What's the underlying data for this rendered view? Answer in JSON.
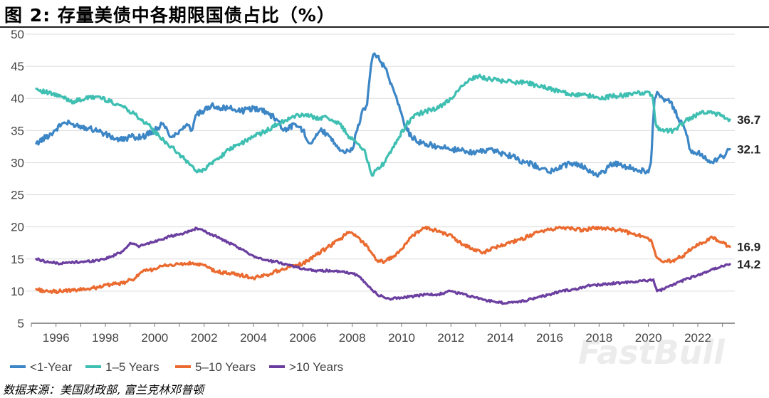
{
  "header": {
    "title": "图 2:  存量美债中各期限国债占比（%）"
  },
  "footer": {
    "source": "数据来源：美国财政部, 富兰克林邓普顿"
  },
  "watermark": "FastBull",
  "colors": {
    "lt1": "#3d86c6",
    "y1_5": "#3fbfb2",
    "y5_10": "#ea6a2f",
    "gt10": "#6b3fa0"
  },
  "chart_data": {
    "type": "line",
    "title": "存量美债中各期限国债占比（%）",
    "xlabel": "",
    "ylabel": "",
    "xlim": [
      1995,
      2023.5
    ],
    "ylim": [
      5,
      50
    ],
    "x_ticks": [
      "1996",
      "1998",
      "2000",
      "2002",
      "2004",
      "2006",
      "2008",
      "2010",
      "2012",
      "2014",
      "2016",
      "2018",
      "2020",
      "2022"
    ],
    "y_ticks": [
      "50",
      "45",
      "40",
      "35",
      "30",
      "25",
      "20",
      "15",
      "10",
      "5"
    ],
    "legend_position": "bottom-left",
    "series": [
      {
        "name": "<1-Year",
        "color": "#3d86c6",
        "end_label": "32.1",
        "points": [
          [
            1995.2,
            33
          ],
          [
            1995.8,
            34.5
          ],
          [
            1996.3,
            36.2
          ],
          [
            1996.7,
            36
          ],
          [
            1997.2,
            35.5
          ],
          [
            1997.7,
            35
          ],
          [
            1998.2,
            34
          ],
          [
            1998.6,
            33.5
          ],
          [
            1999,
            34
          ],
          [
            1999.5,
            34
          ],
          [
            2000,
            35
          ],
          [
            2000.3,
            36
          ],
          [
            2000.7,
            34
          ],
          [
            2001,
            35
          ],
          [
            2001.3,
            36
          ],
          [
            2001.5,
            35
          ],
          [
            2001.7,
            37.5
          ],
          [
            2002,
            38
          ],
          [
            2002.3,
            39
          ],
          [
            2002.7,
            38.5
          ],
          [
            2003,
            38.5
          ],
          [
            2003.5,
            38
          ],
          [
            2004,
            38.5
          ],
          [
            2004.5,
            38
          ],
          [
            2005,
            36.5
          ],
          [
            2005.2,
            35
          ],
          [
            2005.7,
            36
          ],
          [
            2006,
            35
          ],
          [
            2006.3,
            33
          ],
          [
            2006.7,
            35
          ],
          [
            2007,
            34.5
          ],
          [
            2007.3,
            33
          ],
          [
            2007.7,
            31.5
          ],
          [
            2008,
            32
          ],
          [
            2008.2,
            35
          ],
          [
            2008.4,
            38
          ],
          [
            2008.6,
            39
          ],
          [
            2008.8,
            46
          ],
          [
            2008.9,
            47
          ],
          [
            2009.1,
            46
          ],
          [
            2009.3,
            45
          ],
          [
            2009.5,
            43
          ],
          [
            2009.7,
            41
          ],
          [
            2009.9,
            39
          ],
          [
            2010.1,
            36
          ],
          [
            2010.4,
            34
          ],
          [
            2010.8,
            33
          ],
          [
            2011.5,
            32.5
          ],
          [
            2012,
            32
          ],
          [
            2012.5,
            32
          ],
          [
            2013,
            31.5
          ],
          [
            2013.5,
            32
          ],
          [
            2014,
            31.5
          ],
          [
            2014.5,
            31
          ],
          [
            2015,
            30
          ],
          [
            2015.5,
            29.5
          ],
          [
            2016,
            28.5
          ],
          [
            2016.5,
            29.5
          ],
          [
            2017,
            30
          ],
          [
            2017.5,
            29
          ],
          [
            2017.9,
            28
          ],
          [
            2018.3,
            29
          ],
          [
            2018.6,
            30
          ],
          [
            2019,
            29.5
          ],
          [
            2019.5,
            29
          ],
          [
            2020,
            28.5
          ],
          [
            2020.1,
            30
          ],
          [
            2020.25,
            40
          ],
          [
            2020.35,
            41
          ],
          [
            2020.6,
            40
          ],
          [
            2020.9,
            39.5
          ],
          [
            2021.2,
            37
          ],
          [
            2021.5,
            35
          ],
          [
            2021.7,
            32
          ],
          [
            2022,
            31.5
          ],
          [
            2022.3,
            31
          ],
          [
            2022.5,
            30
          ],
          [
            2022.8,
            30.5
          ],
          [
            2023,
            31
          ],
          [
            2023.3,
            32.1
          ]
        ]
      },
      {
        "name": "1–5 Years",
        "color": "#3fbfb2",
        "end_label": "36.7",
        "points": [
          [
            1995.2,
            41.5
          ],
          [
            1995.7,
            40.8
          ],
          [
            1996.2,
            40.3
          ],
          [
            1996.7,
            39.5
          ],
          [
            1997.2,
            40
          ],
          [
            1997.7,
            40.3
          ],
          [
            1998.2,
            39.5
          ],
          [
            1998.7,
            38.8
          ],
          [
            1999.2,
            37.5
          ],
          [
            1999.7,
            36
          ],
          [
            2000.2,
            34
          ],
          [
            2000.5,
            33
          ],
          [
            2000.8,
            32
          ],
          [
            2001.2,
            30.5
          ],
          [
            2001.5,
            29.5
          ],
          [
            2001.7,
            28.5
          ],
          [
            2002,
            29
          ],
          [
            2002.5,
            30.5
          ],
          [
            2003,
            32
          ],
          [
            2003.5,
            33
          ],
          [
            2004,
            34
          ],
          [
            2004.5,
            35
          ],
          [
            2005,
            36
          ],
          [
            2005.5,
            37
          ],
          [
            2006,
            37.5
          ],
          [
            2006.5,
            37
          ],
          [
            2007,
            37
          ],
          [
            2007.5,
            36
          ],
          [
            2007.9,
            34
          ],
          [
            2008.2,
            33
          ],
          [
            2008.5,
            32
          ],
          [
            2008.8,
            28
          ],
          [
            2009,
            29
          ],
          [
            2009.3,
            30
          ],
          [
            2009.6,
            32
          ],
          [
            2009.9,
            34
          ],
          [
            2010.2,
            36
          ],
          [
            2010.6,
            37.5
          ],
          [
            2011,
            38
          ],
          [
            2011.5,
            38.5
          ],
          [
            2012,
            40
          ],
          [
            2012.5,
            42
          ],
          [
            2013,
            43.5
          ],
          [
            2013.5,
            43
          ],
          [
            2014,
            42.8
          ],
          [
            2014.5,
            42.5
          ],
          [
            2015,
            42.5
          ],
          [
            2015.5,
            42
          ],
          [
            2016,
            41.5
          ],
          [
            2016.5,
            41
          ],
          [
            2017,
            40.5
          ],
          [
            2017.5,
            40.5
          ],
          [
            2018,
            40
          ],
          [
            2018.5,
            40.3
          ],
          [
            2019,
            40.5
          ],
          [
            2019.5,
            40.8
          ],
          [
            2020,
            41
          ],
          [
            2020.15,
            40.5
          ],
          [
            2020.3,
            36
          ],
          [
            2020.5,
            35
          ],
          [
            2021,
            35
          ],
          [
            2021.5,
            36.5
          ],
          [
            2022,
            37.5
          ],
          [
            2022.5,
            38
          ],
          [
            2023,
            37.2
          ],
          [
            2023.3,
            36.7
          ]
        ]
      },
      {
        "name": "5–10 Years",
        "color": "#ea6a2f",
        "end_label": "16.9",
        "points": [
          [
            1995.2,
            10.3
          ],
          [
            1995.7,
            9.9
          ],
          [
            1996.2,
            10
          ],
          [
            1996.7,
            10.1
          ],
          [
            1997.2,
            10.3
          ],
          [
            1997.7,
            10.6
          ],
          [
            1998.2,
            11
          ],
          [
            1998.7,
            11.2
          ],
          [
            1999.2,
            12
          ],
          [
            1999.5,
            13
          ],
          [
            2000,
            13.5
          ],
          [
            2000.5,
            14
          ],
          [
            2001,
            14.2
          ],
          [
            2001.5,
            14.3
          ],
          [
            2002,
            14
          ],
          [
            2002.5,
            13
          ],
          [
            2003,
            12.8
          ],
          [
            2003.5,
            12.5
          ],
          [
            2004,
            12
          ],
          [
            2004.5,
            12.5
          ],
          [
            2005,
            13.2
          ],
          [
            2005.5,
            13.8
          ],
          [
            2006,
            14.3
          ],
          [
            2006.5,
            15.5
          ],
          [
            2007,
            16.8
          ],
          [
            2007.5,
            18
          ],
          [
            2007.8,
            19.2
          ],
          [
            2008.2,
            18.5
          ],
          [
            2008.6,
            17
          ],
          [
            2009,
            14.8
          ],
          [
            2009.3,
            14.5
          ],
          [
            2009.7,
            15.5
          ],
          [
            2010,
            16.5
          ],
          [
            2010.4,
            18.5
          ],
          [
            2010.9,
            19.8
          ],
          [
            2011.4,
            19.5
          ],
          [
            2011.9,
            18.8
          ],
          [
            2012.4,
            17.5
          ],
          [
            2012.9,
            16.5
          ],
          [
            2013.3,
            16
          ],
          [
            2013.8,
            16.8
          ],
          [
            2014.3,
            17.5
          ],
          [
            2014.8,
            18
          ],
          [
            2015.3,
            18.8
          ],
          [
            2015.8,
            19.5
          ],
          [
            2016.3,
            19.8
          ],
          [
            2016.8,
            19.8
          ],
          [
            2017.3,
            19.5
          ],
          [
            2017.8,
            19.8
          ],
          [
            2018.3,
            19.8
          ],
          [
            2018.8,
            19.5
          ],
          [
            2019.3,
            19
          ],
          [
            2019.8,
            18.5
          ],
          [
            2020.1,
            18
          ],
          [
            2020.3,
            15.5
          ],
          [
            2020.6,
            14.5
          ],
          [
            2021,
            14.8
          ],
          [
            2021.4,
            15.5
          ],
          [
            2021.8,
            16.8
          ],
          [
            2022.2,
            17.5
          ],
          [
            2022.6,
            18.3
          ],
          [
            2023,
            17.5
          ],
          [
            2023.3,
            16.9
          ]
        ]
      },
      {
        "name": ">10 Years",
        "color": "#6b3fa0",
        "end_label": "14.2",
        "points": [
          [
            1995.2,
            15
          ],
          [
            1995.7,
            14.5
          ],
          [
            1996.2,
            14.3
          ],
          [
            1996.7,
            14.5
          ],
          [
            1997.2,
            14.6
          ],
          [
            1997.7,
            14.8
          ],
          [
            1998.2,
            15.3
          ],
          [
            1998.7,
            16.2
          ],
          [
            1999,
            17.5
          ],
          [
            1999.4,
            17
          ],
          [
            1999.8,
            17.5
          ],
          [
            2000.2,
            18
          ],
          [
            2000.6,
            18.5
          ],
          [
            2001,
            18.8
          ],
          [
            2001.4,
            19.3
          ],
          [
            2001.7,
            19.8
          ],
          [
            2002,
            19.3
          ],
          [
            2002.5,
            18.5
          ],
          [
            2003,
            17.5
          ],
          [
            2003.5,
            16.5
          ],
          [
            2004,
            15.5
          ],
          [
            2004.5,
            14.8
          ],
          [
            2005,
            14.5
          ],
          [
            2005.5,
            14
          ],
          [
            2006,
            13.5
          ],
          [
            2006.5,
            13.2
          ],
          [
            2007,
            13.2
          ],
          [
            2007.5,
            13
          ],
          [
            2008,
            12.8
          ],
          [
            2008.3,
            12.2
          ],
          [
            2008.6,
            11
          ],
          [
            2009,
            9.5
          ],
          [
            2009.3,
            9
          ],
          [
            2009.6,
            8.8
          ],
          [
            2010,
            9
          ],
          [
            2010.5,
            9.2
          ],
          [
            2011,
            9.5
          ],
          [
            2011.5,
            9.5
          ],
          [
            2012,
            10
          ],
          [
            2012.5,
            9.5
          ],
          [
            2013,
            9
          ],
          [
            2013.5,
            8.5
          ],
          [
            2014,
            8.2
          ],
          [
            2014.5,
            8.2
          ],
          [
            2015,
            8.5
          ],
          [
            2015.5,
            9
          ],
          [
            2016,
            9.5
          ],
          [
            2016.5,
            10
          ],
          [
            2017,
            10.3
          ],
          [
            2017.5,
            10.8
          ],
          [
            2018,
            11
          ],
          [
            2018.5,
            11.2
          ],
          [
            2019,
            11.3
          ],
          [
            2019.5,
            11.5
          ],
          [
            2020,
            11.7
          ],
          [
            2020.2,
            11.8
          ],
          [
            2020.35,
            10
          ],
          [
            2020.6,
            10.3
          ],
          [
            2021,
            11
          ],
          [
            2021.5,
            11.8
          ],
          [
            2022,
            12.5
          ],
          [
            2022.5,
            13.2
          ],
          [
            2023,
            13.9
          ],
          [
            2023.3,
            14.2
          ]
        ]
      }
    ]
  }
}
